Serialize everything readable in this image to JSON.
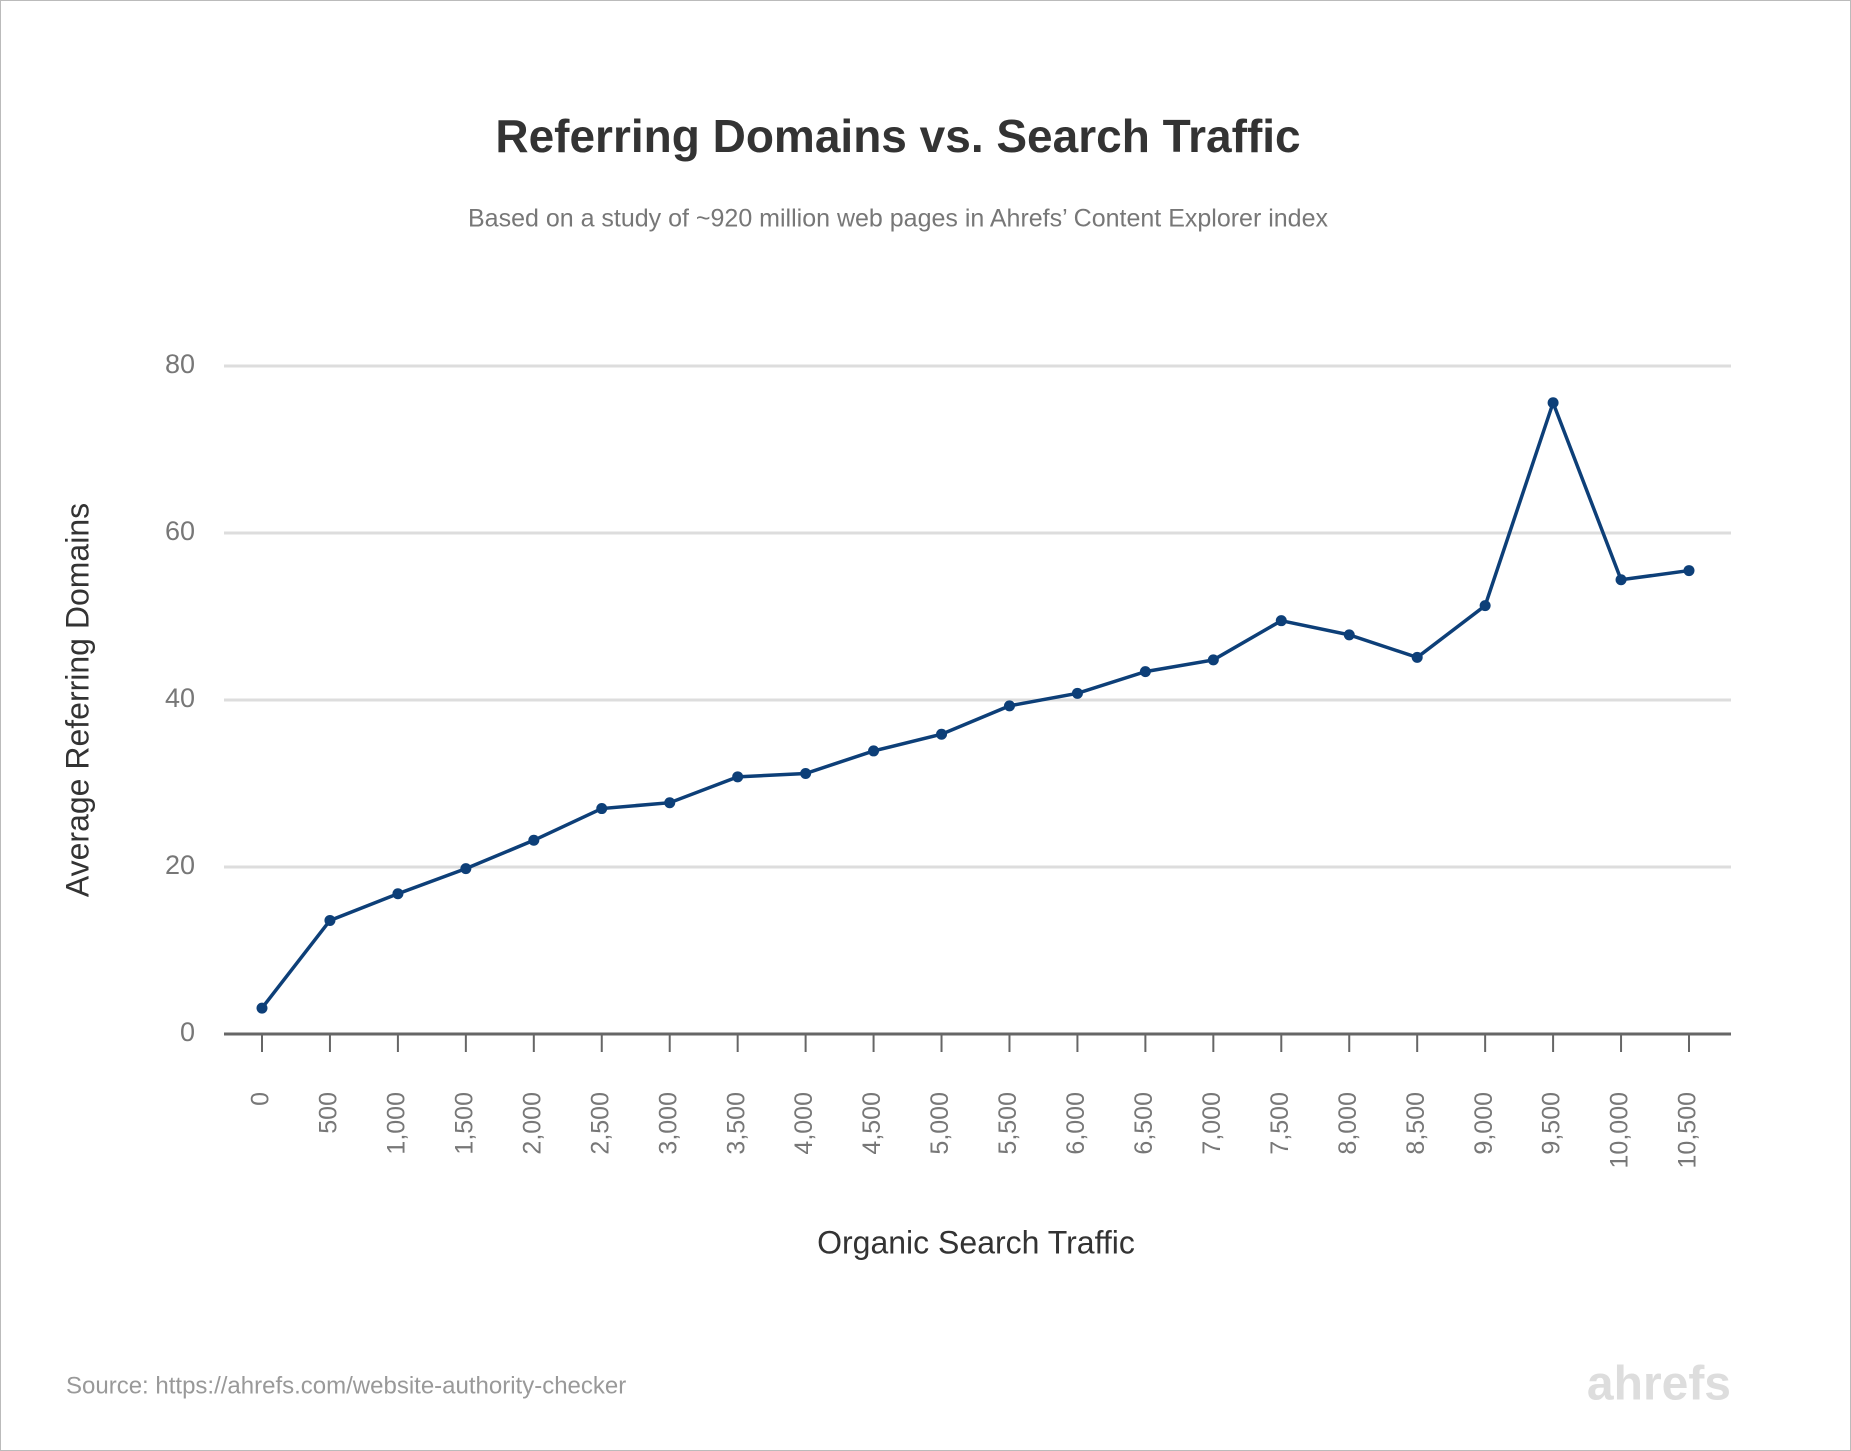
{
  "chart_data": {
    "type": "line",
    "title": "Referring Domains vs. Search Traffic",
    "subtitle": "Based on a study of ~920 million web pages in Ahrefs’ Content Explorer index",
    "x_label": "Organic Search Traffic",
    "y_label": "Average Referring Domains",
    "source": "Source: https://ahrefs.com/website-authority-checker",
    "logo": "ahrefs",
    "categories": [
      "0",
      "500",
      "1,000",
      "1,500",
      "2,000",
      "2,500",
      "3,000",
      "3,500",
      "4,000",
      "4,500",
      "5,000",
      "5,500",
      "6,000",
      "6,500",
      "7,000",
      "7,500",
      "8,000",
      "8,500",
      "9,000",
      "9,500",
      "10,000",
      "10,500"
    ],
    "series": [
      {
        "name": "Average Referring Domains",
        "color": "#0d3f78",
        "values": [
          3.1,
          13.6,
          16.8,
          19.8,
          23.2,
          27.0,
          27.7,
          30.8,
          31.2,
          33.9,
          35.9,
          39.3,
          40.8,
          43.4,
          44.8,
          49.5,
          47.8,
          45.1,
          51.3,
          75.6,
          54.4,
          55.5
        ]
      }
    ],
    "ylim": [
      0,
      80
    ],
    "yticks": [
      0,
      20,
      40,
      60,
      80
    ],
    "grid": true
  }
}
